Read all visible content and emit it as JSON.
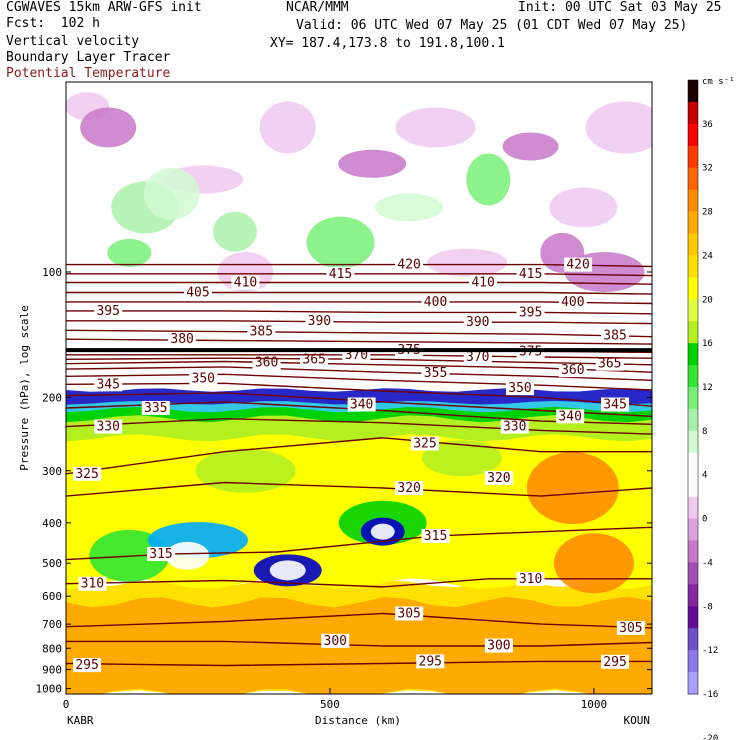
{
  "header": {
    "model": "CGWAVES 15km ARW-GFS init",
    "fcst": "Fcst:  102 h",
    "org": "NCAR/MMM",
    "init": "Init: 00 UTC Sat 03 May 25",
    "valid": "Valid: 06 UTC Wed 07 May 25 (01 CDT Wed 07 May 25)",
    "xy": "XY= 187.4,173.8 to 191.8,100.1",
    "fields": [
      "Vertical velocity",
      "Boundary Layer Tracer",
      "Potential Temperature"
    ]
  },
  "colors": {
    "theta": "#6e0000",
    "theta_label": "#8b1a1a"
  },
  "chart_data": {
    "type": "heatmap",
    "title": "",
    "xlabel": "Distance (km)",
    "ylabel": "Pressure (hPa), log scale",
    "xlim": [
      0,
      1110
    ],
    "ylim": [
      1030,
      35
    ],
    "x_ticks": [
      0,
      500,
      1000
    ],
    "y_ticks": [
      100,
      200,
      300,
      400,
      500,
      600,
      700,
      800,
      900,
      1000
    ],
    "endpoints": {
      "left": "KABR",
      "right": "KOUN"
    },
    "colorbar": {
      "unit": "cm s⁻¹",
      "ticks": [
        36,
        32,
        28,
        24,
        20,
        16,
        12,
        8,
        4,
        0,
        -4,
        -8,
        -12,
        -16,
        -20
      ],
      "colors": [
        "#1a0000",
        "#c80000",
        "#ff0000",
        "#ff3c00",
        "#ff6400",
        "#ff8c00",
        "#ffaa00",
        "#ffc800",
        "#ffe100",
        "#ffff00",
        "#e0ff40",
        "#b4f020",
        "#00d200",
        "#32e632",
        "#78f078",
        "#aaf0aa",
        "#d2fad2",
        "#ffffff",
        "#ffffff",
        "#f0c8f0",
        "#dca0dc",
        "#c878c8",
        "#a050b4",
        "#8228a0",
        "#640a96",
        "#6e50c8",
        "#8c78e6",
        "#aaa0ff"
      ]
    },
    "theta_contours": [
      {
        "theta": 295,
        "p": [
          [
            0,
            870
          ],
          [
            300,
            880
          ],
          [
            600,
            870
          ],
          [
            900,
            860
          ],
          [
            1110,
            860
          ]
        ],
        "labels": [
          [
            40,
            878
          ],
          [
            690,
            860
          ],
          [
            1040,
            862
          ]
        ]
      },
      {
        "theta": 300,
        "p": [
          [
            0,
            770
          ],
          [
            300,
            770
          ],
          [
            600,
            790
          ],
          [
            900,
            790
          ],
          [
            1110,
            775
          ]
        ],
        "labels": [
          [
            510,
            768
          ],
          [
            820,
            788
          ]
        ]
      },
      {
        "theta": 305,
        "p": [
          [
            0,
            710
          ],
          [
            300,
            690
          ],
          [
            600,
            660
          ],
          [
            900,
            700
          ],
          [
            1110,
            715
          ]
        ],
        "labels": [
          [
            650,
            660
          ],
          [
            1070,
            715
          ]
        ]
      },
      {
        "theta": 310,
        "p": [
          [
            0,
            560
          ],
          [
            300,
            550
          ],
          [
            600,
            570
          ],
          [
            800,
            545
          ],
          [
            1110,
            545
          ]
        ],
        "labels": [
          [
            50,
            560
          ],
          [
            880,
            545
          ]
        ]
      },
      {
        "theta": 315,
        "p": [
          [
            0,
            490
          ],
          [
            200,
            475
          ],
          [
            400,
            470
          ],
          [
            700,
            430
          ],
          [
            1110,
            410
          ]
        ],
        "labels": [
          [
            180,
            475
          ],
          [
            700,
            430
          ]
        ]
      },
      {
        "theta": 320,
        "p": [
          [
            0,
            345
          ],
          [
            300,
            320
          ],
          [
            600,
            330
          ],
          [
            900,
            345
          ],
          [
            1110,
            330
          ]
        ],
        "labels": [
          [
            650,
            330
          ],
          [
            820,
            312
          ]
        ]
      },
      {
        "theta": 325,
        "p": [
          [
            0,
            305
          ],
          [
            300,
            270
          ],
          [
            600,
            250
          ],
          [
            900,
            270
          ],
          [
            1110,
            270
          ]
        ],
        "labels": [
          [
            40,
            305
          ],
          [
            680,
            258
          ]
        ]
      },
      {
        "theta": 330,
        "p": [
          [
            0,
            235
          ],
          [
            300,
            225
          ],
          [
            600,
            230
          ],
          [
            900,
            240
          ],
          [
            1110,
            245
          ]
        ],
        "labels": [
          [
            80,
            235
          ],
          [
            850,
            235
          ]
        ]
      },
      {
        "theta": 335,
        "p": [
          [
            0,
            212
          ],
          [
            300,
            205
          ],
          [
            600,
            215
          ],
          [
            900,
            228
          ],
          [
            1110,
            232
          ]
        ],
        "labels": [
          [
            170,
            212
          ]
        ]
      },
      {
        "theta": 340,
        "p": [
          [
            0,
            198
          ],
          [
            300,
            195
          ],
          [
            600,
            205
          ],
          [
            900,
            215
          ],
          [
            1110,
            222
          ]
        ],
        "labels": [
          [
            560,
            208
          ],
          [
            955,
            222
          ]
        ]
      },
      {
        "theta": 345,
        "p": [
          [
            0,
            186
          ],
          [
            300,
            185
          ],
          [
            600,
            193
          ],
          [
            900,
            200
          ],
          [
            1110,
            210
          ]
        ],
        "labels": [
          [
            80,
            186
          ],
          [
            1040,
            208
          ]
        ]
      },
      {
        "theta": 350,
        "p": [
          [
            0,
            178
          ],
          [
            300,
            176
          ],
          [
            600,
            182
          ],
          [
            900,
            187
          ],
          [
            1110,
            192
          ]
        ],
        "labels": [
          [
            260,
            180
          ],
          [
            860,
            190
          ]
        ]
      },
      {
        "theta": 355,
        "p": [
          [
            0,
            171
          ],
          [
            300,
            169
          ],
          [
            600,
            174
          ],
          [
            900,
            178
          ],
          [
            1110,
            182
          ]
        ],
        "labels": [
          [
            700,
            175
          ]
        ]
      },
      {
        "theta": 360,
        "p": [
          [
            0,
            166
          ],
          [
            300,
            164
          ],
          [
            600,
            167
          ],
          [
            900,
            170
          ],
          [
            1110,
            174
          ]
        ],
        "labels": [
          [
            380,
            165
          ],
          [
            960,
            172
          ]
        ]
      },
      {
        "theta": 365,
        "p": [
          [
            0,
            162
          ],
          [
            300,
            161
          ],
          [
            600,
            162
          ],
          [
            900,
            165
          ],
          [
            1110,
            167
          ]
        ],
        "labels": [
          [
            470,
            162
          ],
          [
            1030,
            166
          ]
        ]
      },
      {
        "theta": 370,
        "p": [
          [
            0,
            158
          ],
          [
            300,
            158
          ],
          [
            600,
            158
          ],
          [
            900,
            160
          ],
          [
            1110,
            161
          ]
        ],
        "labels": [
          [
            550,
            158
          ],
          [
            780,
            160
          ]
        ]
      },
      {
        "theta": 375,
        "p": [
          [
            0,
            155
          ],
          [
            300,
            155
          ],
          [
            600,
            154
          ],
          [
            900,
            155
          ],
          [
            1110,
            156
          ]
        ],
        "labels": [
          [
            650,
            154
          ],
          [
            880,
            155
          ]
        ]
      },
      {
        "theta": 380,
        "p": [
          [
            0,
            145
          ],
          [
            300,
            146
          ],
          [
            600,
            147
          ],
          [
            900,
            148
          ],
          [
            1110,
            149
          ]
        ],
        "labels": [
          [
            220,
            145
          ]
        ]
      },
      {
        "theta": 385,
        "p": [
          [
            0,
            138
          ],
          [
            300,
            139
          ],
          [
            600,
            140
          ],
          [
            900,
            141
          ],
          [
            1110,
            143
          ]
        ],
        "labels": [
          [
            370,
            139
          ],
          [
            1040,
            142
          ]
        ]
      },
      {
        "theta": 390,
        "p": [
          [
            0,
            131
          ],
          [
            300,
            131
          ],
          [
            600,
            132
          ],
          [
            900,
            132
          ],
          [
            1110,
            133
          ]
        ],
        "labels": [
          [
            480,
            131
          ],
          [
            780,
            132
          ]
        ]
      },
      {
        "theta": 395,
        "p": [
          [
            0,
            124
          ],
          [
            300,
            124
          ],
          [
            600,
            125
          ],
          [
            900,
            125
          ],
          [
            1110,
            126
          ]
        ],
        "labels": [
          [
            80,
            124
          ],
          [
            880,
            125
          ]
        ]
      },
      {
        "theta": 400,
        "p": [
          [
            0,
            118
          ],
          [
            300,
            118
          ],
          [
            600,
            118
          ],
          [
            900,
            118
          ],
          [
            1110,
            119
          ]
        ],
        "labels": [
          [
            700,
            118
          ],
          [
            960,
            118
          ]
        ]
      },
      {
        "theta": 405,
        "p": [
          [
            0,
            112
          ],
          [
            300,
            112
          ],
          [
            600,
            112
          ],
          [
            900,
            112
          ],
          [
            1110,
            113
          ]
        ],
        "labels": [
          [
            250,
            112
          ]
        ]
      },
      {
        "theta": 410,
        "p": [
          [
            0,
            106
          ],
          [
            300,
            106
          ],
          [
            600,
            106
          ],
          [
            900,
            106
          ],
          [
            1110,
            107
          ]
        ],
        "labels": [
          [
            340,
            106
          ],
          [
            790,
            106
          ]
        ]
      },
      {
        "theta": 415,
        "p": [
          [
            0,
            101
          ],
          [
            300,
            101
          ],
          [
            600,
            101
          ],
          [
            900,
            101
          ],
          [
            1110,
            102
          ]
        ],
        "labels": [
          [
            520,
            101
          ],
          [
            880,
            101
          ]
        ]
      },
      {
        "theta": 420,
        "p": [
          [
            0,
            96
          ],
          [
            300,
            96
          ],
          [
            600,
            96
          ],
          [
            900,
            96
          ],
          [
            1110,
            97
          ]
        ],
        "labels": [
          [
            650,
            96
          ],
          [
            970,
            96
          ]
        ]
      }
    ],
    "tropopause": {
      "p": 154
    }
  }
}
